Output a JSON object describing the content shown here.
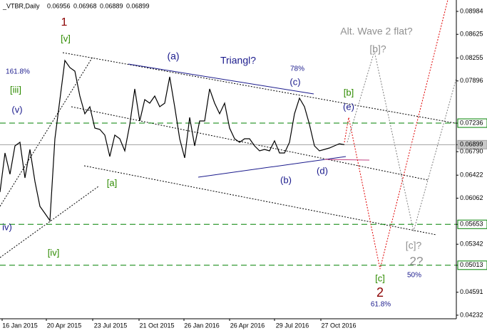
{
  "chart_data": {
    "type": "line",
    "title": "_VTBR,Daily",
    "ohlc": [
      0.06956,
      0.06968,
      0.06889,
      0.06899
    ],
    "series": [
      {
        "name": "VTBR",
        "color": "#000000",
        "values": [
          0.06158,
          0.06769,
          0.06436,
          0.06881,
          0.06936,
          0.0638,
          0.06825,
          0.06324,
          0.05935,
          0.05824,
          0.05712,
          0.06992,
          0.07604,
          0.08216,
          0.08105,
          0.08049,
          0.0766,
          0.07382,
          0.07493,
          0.07159,
          0.07137,
          0.07048,
          0.06714,
          0.07048,
          0.06992,
          0.06803,
          0.07215,
          0.07771,
          0.0727,
          0.07604,
          0.07548,
          0.0766,
          0.07493,
          0.07548,
          0.0796,
          0.07493,
          0.06992,
          0.06692,
          0.07326,
          0.06881,
          0.0727,
          0.0727,
          0.07771,
          0.07548,
          0.07382,
          0.07548,
          0.07159,
          0.06992,
          0.06936,
          0.06992,
          0.06992,
          0.06881,
          0.06803,
          0.06825,
          0.06803,
          0.06959,
          0.06769,
          0.06769,
          0.06936,
          0.07382,
          0.07626,
          0.07493,
          0.07215,
          0.06881,
          0.06803,
          0.06825,
          0.06847,
          0.06881,
          0.06914,
          0.06899
        ]
      }
    ],
    "x_labels": [
      "16 Jan 2015",
      "20 Apr 2015",
      "23 Jul 2015",
      "21 Oct 2015",
      "26 Jan 2016",
      "26 Apr 2016",
      "29 Jul 2016",
      "27 Oct 2016"
    ],
    "ylim": [
      0.04176,
      0.09162
    ],
    "yticks": [
      0.08984,
      0.08625,
      0.08255,
      0.07896,
      0.07236,
      0.06899,
      {
        "value": 0.0679,
        "label": "0.06790"
      },
      0.06422,
      0.06062,
      0.05653,
      0.05342,
      0.05013,
      0.04591,
      0.04232
    ],
    "levels": [
      {
        "value": 0.07236,
        "color": "#008000"
      },
      {
        "value": 0.06899,
        "color": "#a0a0a0"
      },
      {
        "value": 0.05653,
        "color": "#008000"
      },
      {
        "value": 0.05013,
        "color": "#008000"
      }
    ],
    "annotations": [
      {
        "text": "1",
        "color": "#8b0000"
      },
      {
        "text": "[v]",
        "color": "#2e8b00"
      },
      {
        "text": "161.8%",
        "color": "#1a1a8c"
      },
      {
        "text": "[iii]",
        "color": "#2e8b00"
      },
      {
        "text": "(v)",
        "color": "#1a1a8c"
      },
      {
        "text": "(a)",
        "color": "#1a1a8c"
      },
      {
        "text": "Triangl?",
        "color": "#1a1a8c"
      },
      {
        "text": "78%",
        "color": "#1a1a8c"
      },
      {
        "text": "(c)",
        "color": "#1a1a8c"
      },
      {
        "text": "[b]",
        "color": "#2e8b00"
      },
      {
        "text": "(e)",
        "color": "#1a1a8c"
      },
      {
        "text": "Alt. Wave 2 flat?",
        "color": "#909090"
      },
      {
        "text": "[b]?",
        "color": "#909090"
      },
      {
        "text": "[a]",
        "color": "#2e8b00"
      },
      {
        "text": "(b)",
        "color": "#1a1a8c"
      },
      {
        "text": "(d)",
        "color": "#1a1a8c"
      },
      {
        "text": "iv)",
        "color": "#1a1a8c"
      },
      {
        "text": "[iv]",
        "color": "#2e8b00"
      },
      {
        "text": "[c]?",
        "color": "#909090"
      },
      {
        "text": "2?",
        "color": "#909090"
      },
      {
        "text": "50%",
        "color": "#1a1a8c"
      },
      {
        "text": "[c]",
        "color": "#2e8b00"
      },
      {
        "text": "2",
        "color": "#8b0000"
      },
      {
        "text": "61.8%",
        "color": "#1a1a8c"
      }
    ]
  }
}
